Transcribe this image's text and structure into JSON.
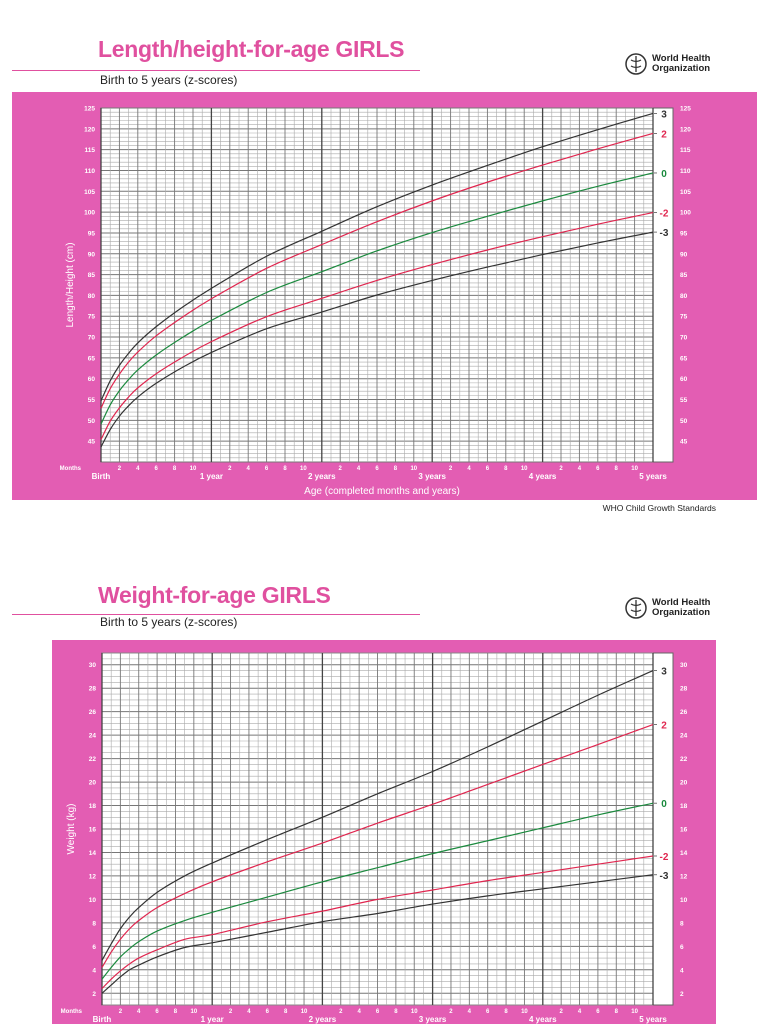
{
  "colors": {
    "panel": "#e35db3",
    "title": "#e0509f",
    "z3": "#333333",
    "z2": "#e0264f",
    "z0": "#1b8a3e",
    "grid": "#8a8a8a"
  },
  "logo": {
    "icon": "who-emblem-icon",
    "line1": "World Health",
    "line2": "Organization"
  },
  "footer": "WHO Child Growth Standards",
  "chart_data": [
    {
      "type": "line",
      "title": "Length/height-for-age GIRLS",
      "subtitle": "Birth to 5 years (z-scores)",
      "ylabel": "Length/Height (cm)",
      "xlabel": "Age (completed months and years)",
      "months_label": "Months",
      "xlim": [
        0,
        60
      ],
      "ylim": [
        40,
        125
      ],
      "yticks": [
        45,
        50,
        55,
        60,
        65,
        70,
        75,
        80,
        85,
        90,
        95,
        100,
        105,
        110,
        115,
        120,
        125
      ],
      "month_ticks": [
        "2",
        "4",
        "6",
        "8",
        "10"
      ],
      "year_labels": [
        "Birth",
        "1 year",
        "2 years",
        "3 years",
        "4 years",
        "5 years"
      ],
      "grid": true,
      "x": [
        0,
        1,
        2,
        3,
        4,
        6,
        9,
        12,
        18,
        24,
        30,
        36,
        42,
        48,
        54,
        60
      ],
      "series": [
        {
          "name": "3",
          "color": "#333333",
          "values": [
            54.7,
            59.5,
            63.2,
            66.1,
            68.6,
            72.5,
            77.4,
            81.7,
            89.4,
            95.4,
            101.3,
            106.5,
            111.2,
            115.7,
            119.8,
            123.7
          ]
        },
        {
          "name": "2",
          "color": "#e0264f",
          "values": [
            52.9,
            57.6,
            61.1,
            64.0,
            66.4,
            70.3,
            75.0,
            79.2,
            86.5,
            92.2,
            97.7,
            102.7,
            107.2,
            111.3,
            115.2,
            118.9
          ]
        },
        {
          "name": "0",
          "color": "#1b8a3e",
          "values": [
            49.1,
            53.7,
            57.1,
            59.8,
            62.1,
            65.7,
            70.1,
            74.0,
            80.7,
            85.7,
            90.7,
            95.1,
            99.0,
            102.7,
            106.2,
            109.4
          ]
        },
        {
          "name": "-2",
          "color": "#e0264f",
          "values": [
            45.4,
            49.8,
            53.0,
            55.6,
            57.8,
            61.2,
            65.3,
            68.9,
            74.9,
            79.3,
            83.6,
            87.4,
            90.9,
            94.1,
            97.1,
            99.9
          ]
        },
        {
          "name": "-3",
          "color": "#333333",
          "values": [
            43.6,
            47.8,
            51.0,
            53.5,
            55.6,
            58.9,
            62.9,
            66.3,
            72.0,
            76.0,
            80.1,
            83.6,
            86.8,
            89.8,
            92.6,
            95.2
          ]
        }
      ]
    },
    {
      "type": "line",
      "title": "Weight-for-age GIRLS",
      "subtitle": "Birth to 5 years (z-scores)",
      "ylabel": "Weight (kg)",
      "months_label": "Months",
      "xlim": [
        0,
        60
      ],
      "ylim": [
        1,
        31
      ],
      "yticks": [
        2,
        4,
        6,
        8,
        10,
        12,
        14,
        16,
        18,
        20,
        22,
        24,
        26,
        28,
        30
      ],
      "month_ticks": [
        "2",
        "4",
        "6",
        "8",
        "10"
      ],
      "year_labels": [
        "Birth",
        "1 year",
        "2 years",
        "3 years",
        "4 years",
        "5 years"
      ],
      "grid": true,
      "x": [
        0,
        1,
        2,
        3,
        4,
        6,
        9,
        12,
        18,
        24,
        30,
        36,
        42,
        48,
        54,
        60
      ],
      "series": [
        {
          "name": "3",
          "color": "#333333",
          "values": [
            4.8,
            6.2,
            7.5,
            8.5,
            9.3,
            10.6,
            12.0,
            13.1,
            15.1,
            17.0,
            19.0,
            20.9,
            23.0,
            25.2,
            27.4,
            29.5
          ]
        },
        {
          "name": "2",
          "color": "#e0264f",
          "values": [
            4.2,
            5.5,
            6.6,
            7.5,
            8.2,
            9.3,
            10.5,
            11.5,
            13.2,
            14.8,
            16.5,
            18.1,
            19.8,
            21.5,
            23.2,
            24.9
          ]
        },
        {
          "name": "0",
          "color": "#1b8a3e",
          "values": [
            3.2,
            4.2,
            5.1,
            5.8,
            6.4,
            7.3,
            8.2,
            8.9,
            10.2,
            11.5,
            12.7,
            13.9,
            15.0,
            16.1,
            17.2,
            18.2
          ]
        },
        {
          "name": "-2",
          "color": "#e0264f",
          "values": [
            2.4,
            3.2,
            3.9,
            4.5,
            5.0,
            5.7,
            6.6,
            7.0,
            8.1,
            9.0,
            10.0,
            10.8,
            11.6,
            12.3,
            13.0,
            13.7
          ]
        },
        {
          "name": "-3",
          "color": "#333333",
          "values": [
            2.0,
            2.7,
            3.4,
            4.0,
            4.4,
            5.1,
            5.9,
            6.3,
            7.2,
            8.1,
            8.8,
            9.6,
            10.3,
            10.9,
            11.5,
            12.1
          ]
        }
      ]
    }
  ]
}
